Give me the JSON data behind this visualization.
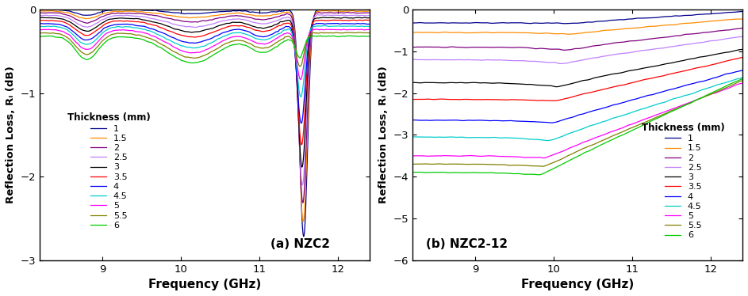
{
  "freq_min": 8.2,
  "freq_max": 12.4,
  "panel_a": {
    "title": "(a) NZC2",
    "ylim": [
      -3,
      0
    ],
    "yticks": [
      0,
      -1,
      -2,
      -3
    ],
    "ylabel": "Reflection Loss, Rₗ (dB)"
  },
  "panel_b": {
    "title": "(b) NZC2-12",
    "ylim": [
      -6,
      0
    ],
    "yticks": [
      0,
      -1,
      -2,
      -3,
      -4,
      -5,
      -6
    ],
    "ylabel": "Reflection Loss, Rₗ (dB)"
  },
  "thicknesses": [
    "1",
    "1.5",
    "2",
    "2.5",
    "3",
    "3.5",
    "4",
    "4.5",
    "5",
    "5.5",
    "6"
  ],
  "colors": [
    "#00008B",
    "#FF8C00",
    "#800080",
    "#BF80FF",
    "#000000",
    "#FF0000",
    "#0000FF",
    "#00CCCC",
    "#FF00FF",
    "#808000",
    "#00CC00"
  ],
  "xlabel": "Frequency (GHz)",
  "legend_title": "Thickness (mm)"
}
